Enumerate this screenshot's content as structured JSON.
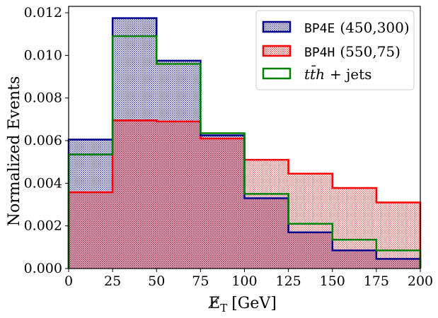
{
  "chart_data": {
    "type": "histogram",
    "xlabel": "E̸T [GeV]",
    "xlabel_parts": {
      "main": "E̸",
      "sub": "T",
      "unit": "[GeV]"
    },
    "ylabel": "Normalized Events",
    "xlim": [
      0,
      200
    ],
    "ylim": [
      0,
      0.0123
    ],
    "xticks": [
      0,
      25,
      50,
      75,
      100,
      125,
      150,
      175,
      200
    ],
    "yticks": [
      0.0,
      0.002,
      0.004,
      0.006,
      0.008,
      0.01,
      0.012
    ],
    "ytick_labels": [
      "0.000",
      "0.002",
      "0.004",
      "0.006",
      "0.008",
      "0.010",
      "0.012"
    ],
    "bin_edges": [
      0,
      25,
      50,
      75,
      100,
      125,
      150,
      175,
      200
    ],
    "grid": false,
    "legend_position": "top-right",
    "series": [
      {
        "id": "bp4e",
        "name_mono": "BP4E",
        "name_rest": "(450,300)",
        "edge_color": "#00008B",
        "hatch_color": "#1a1aa0",
        "fill": "hatched",
        "values": [
          0.00605,
          0.01175,
          0.00975,
          0.00625,
          0.0033,
          0.0017,
          0.00085,
          0.00045
        ]
      },
      {
        "id": "bp4h",
        "name_mono": "BP4H",
        "name_rest": "(550,75)",
        "edge_color": "#FF0000",
        "hatch_color": "#e33030",
        "fill": "hatched",
        "values": [
          0.00358,
          0.00695,
          0.0069,
          0.0061,
          0.0051,
          0.00445,
          0.00378,
          0.0031
        ]
      },
      {
        "id": "tth",
        "name_math": "tt̄h",
        "name_rest": "+ jets",
        "edge_color": "#008000",
        "fill": "none",
        "values": [
          0.00535,
          0.0109,
          0.0096,
          0.00635,
          0.0035,
          0.0021,
          0.00135,
          0.00085
        ]
      }
    ]
  }
}
